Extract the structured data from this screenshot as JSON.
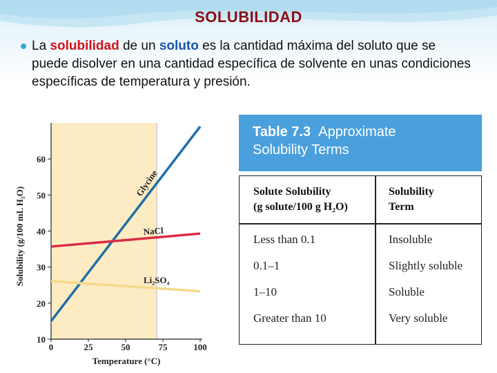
{
  "slide": {
    "title": "SOLUBILIDAD",
    "bullet": {
      "t1": "La ",
      "kw1": "solubilidad",
      "t2": " de un ",
      "kw2": "soluto",
      "t3": " es la cantidad máxima del soluto que se puede disolver en una cantidad específica de solvente  en unas condiciones específicas de temperatura y presión."
    }
  },
  "colors": {
    "title": "#8b0e14",
    "keyword_red": "#d3111b",
    "keyword_blue": "#1b55b0",
    "glycine": "#1f6fa6",
    "nacl": "#d92d45",
    "li2so4": "#f5d98a",
    "plot_band": "#fdebc4",
    "table_header": "#4aa0dc"
  },
  "chart_data": {
    "type": "line",
    "xlabel": "Temperature (°C)",
    "ylabel": "Solubility (g/100 mL H₂O)",
    "xlim": [
      0,
      100
    ],
    "ylim": [
      10,
      70
    ],
    "x_ticks": [
      "0",
      "25",
      "50",
      "75",
      "100"
    ],
    "y_ticks": [
      "10",
      "20",
      "30",
      "40",
      "50",
      "60"
    ],
    "series": [
      {
        "name": "Glycine",
        "x": [
          0,
          100
        ],
        "y": [
          15,
          69
        ]
      },
      {
        "name": "NaCl",
        "x": [
          0,
          100
        ],
        "y": [
          35.7,
          39.3
        ]
      },
      {
        "name": "Li₂SO₄",
        "x": [
          0,
          100
        ],
        "y": [
          26.1,
          23.3
        ]
      }
    ]
  },
  "table": {
    "number": "Table 7.3",
    "title_line1": "Approximate",
    "title_line2": "Solubility Terms",
    "col1_header_line1": "Solute Solubility",
    "col1_header_line2": "(g solute/100 g H₂O)",
    "col2_header_line1": "Solubility",
    "col2_header_line2": "Term",
    "rows": [
      {
        "solubility": "Less than 0.1",
        "term": "Insoluble"
      },
      {
        "solubility": "0.1–1",
        "term": "Slightly soluble"
      },
      {
        "solubility": "1–10",
        "term": "Soluble"
      },
      {
        "solubility": "Greater than 10",
        "term": "Very soluble"
      }
    ]
  }
}
